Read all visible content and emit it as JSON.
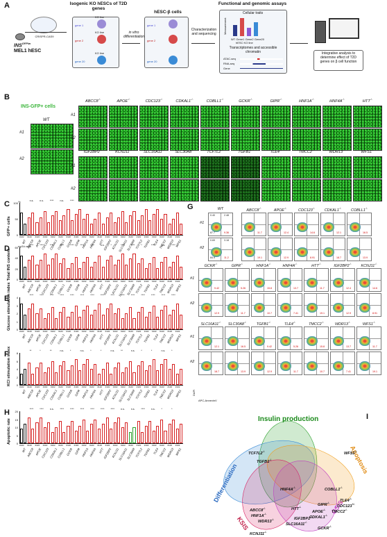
{
  "panel_labels": [
    "A",
    "B",
    "C",
    "D",
    "E",
    "F",
    "G",
    "H",
    "I"
  ],
  "A": {
    "crispr": "CRISPR-CAS9",
    "ins_line": "INS",
    "ins_sup": "GFP/w",
    "mel": "MEL1 hESC",
    "iso_title": "Isogenic KO hESCs of T2D genes",
    "genes": [
      "gene 1",
      "gene 2",
      "gene 20"
    ],
    "ko_line": "KO line",
    "invitro": "in vitro differentiation",
    "beta_title": "hESC-β cells",
    "charseq": "Characterization and sequencing",
    "func_title": "Functional and genomic assays",
    "cell_traits": "Cellular traits",
    "measurement": "Measurement",
    "bar_xlabels": [
      "WT",
      "Gene1",
      "Gene2",
      "Gene20"
    ],
    "ko_line_axis": "hESC KO line",
    "transcript": "Transcriptomes and accessible chromatin",
    "tracks": [
      "ATAC-seq",
      "RNA-seq",
      "Gene"
    ],
    "integrative": "Integrative analysis to determine effect of T2D genes on β cell function"
  },
  "B": {
    "title": "INS-GFP+ cells",
    "wt": "WT",
    "rows": [
      "#1",
      "#2"
    ],
    "row1_genes": [
      "ABCC8",
      "APOE",
      "CDC123",
      "CDKAL1",
      "COBLL1",
      "GCKR",
      "GIPR",
      "HNF1A",
      "HNF4A",
      "HTT"
    ],
    "row2_genes": [
      "IGF2BP2",
      "KCNJ11",
      "SLC16A11",
      "SLC30A8",
      "TCF7L2",
      "TGFB1",
      "TLE4",
      "TMCC2",
      "WDR13",
      "WFS1"
    ],
    "ko_sup": "-/-"
  },
  "bar_panels": {
    "C": {
      "ylabel": "GFP+ cells",
      "unit": "%",
      "yticks": [
        "100",
        "50",
        "0"
      ]
    },
    "D": {
      "ylabel": "Total INS content",
      "unit": "ng/1k cells",
      "yticks": [
        "60",
        "40",
        "20",
        "0"
      ]
    },
    "E": {
      "ylabel": "Glucose stimulation index",
      "yticks": [
        "4",
        "3",
        "2",
        "1",
        "0"
      ]
    },
    "F": {
      "ylabel": "KCl stimulation index",
      "yticks": [
        "8",
        "6",
        "4",
        "2",
        "0"
      ]
    },
    "H": {
      "ylabel": "Apoptotic rate",
      "yticks": [
        "20",
        "15",
        "10",
        "5",
        "0"
      ]
    }
  },
  "x_genes": [
    "WT",
    "ABCC8",
    "APOE",
    "CDC123",
    "CDKAL1",
    "COBLL1",
    "GCKR",
    "GIPR",
    "HNF1A",
    "HNF4A",
    "HTT",
    "IGF2BP2",
    "KCNJ11",
    "SLC16A11",
    "SLC30A8",
    "TCF7L2",
    "TGFB1",
    "TLE4",
    "TMCC2",
    "WDR13",
    "WFS1"
  ],
  "sig_C": [
    "n.s.",
    "n.s.",
    "****",
    "n.s.",
    "****",
    "n.s.",
    "****",
    "n.s.",
    "n.s.",
    "n.s.",
    "n.s.",
    "n.s.",
    "****",
    "****",
    "n.s.",
    "n.s.",
    "n.s."
  ],
  "sig_D": [
    "****",
    "****",
    "****",
    "****",
    "****",
    "****",
    "****",
    "n.s.",
    "*",
    "****",
    "****",
    "*",
    "****",
    "n.s.",
    "****"
  ],
  "sig_E": [
    "****",
    "****",
    "****",
    "****",
    "****",
    "****",
    "****",
    "****",
    "****",
    "****",
    "****",
    "****",
    "****",
    "****",
    "****"
  ],
  "sig_F": [
    "**",
    "*",
    "**",
    "n.s.",
    "*",
    "n.s.",
    "*",
    "*",
    "n.s.",
    "**",
    "n.s.",
    "*",
    "*",
    "n.s.",
    "*"
  ],
  "sig_H": [
    "****",
    "****",
    "n.s.",
    "****",
    "****",
    "****",
    "****",
    "****",
    "****",
    "n.s.",
    "n.s.",
    "****",
    "n.s.",
    "*",
    "*"
  ],
  "rep": [
    "#1",
    "#2"
  ],
  "G": {
    "row_a": [
      "WT",
      "ABCC8",
      "APOE",
      "CDC123",
      "CDKAL1",
      "COBLL1"
    ],
    "row_b": [
      "GCKR",
      "GIPR",
      "HNF1A",
      "HNF4A",
      "HTT",
      "IGF2BP2",
      "KCNJ11"
    ],
    "row_c": [
      "SLC16A11",
      "SLC30A8",
      "TGFB1",
      "TLE4",
      "TMCC2",
      "WDR13",
      "WFS1"
    ],
    "reps": [
      "#1",
      "#2"
    ],
    "dapi": "DAPI",
    "annexin": "APC-AnnexinV",
    "wt_vals1": [
      "0.40",
      "2.48",
      "87.7",
      "9.36"
    ],
    "wt_vals2": [
      "0.69",
      "3.18",
      "84.9",
      "11.2"
    ],
    "red_vals": [
      "11.7",
      "19.1",
      "12.4",
      "12.9",
      "14.6",
      "8.91",
      "12.1",
      "18.7",
      "16.5",
      "13.9",
      "9.42",
      "12.9",
      "5.26",
      "11.7",
      "15.8",
      "10.7",
      "13.7",
      "7.41"
    ]
  },
  "I": {
    "title": "Insulin production",
    "differentiation": "Differentiation",
    "apoptosis": "Apoptosis",
    "ksis": "KSIS",
    "gsis": "GSIS",
    "genes": [
      "TCF7L2",
      "WFS1",
      "TGFB1",
      "HNF4A",
      "COBLL1",
      "TLE4",
      "CDC123",
      "TMCC2",
      "GIPR",
      "APOE",
      "CDKAL1",
      "ABCC8",
      "HNF1A",
      "WDR13",
      "HTT",
      "IGF2BP2",
      "SLC16A11",
      "KCNJ11",
      "GCKR"
    ],
    "sup": "-/-",
    "sup_het": "+/-"
  },
  "colors": {
    "wt": "#111111",
    "ko": "#d62020",
    "green": "#2aa02a",
    "gfp": "#39c939"
  }
}
